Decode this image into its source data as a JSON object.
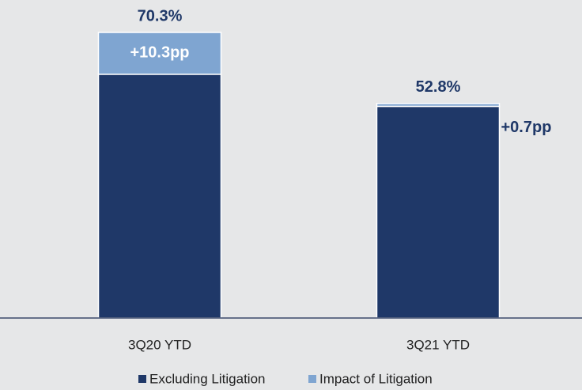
{
  "chart_data": {
    "type": "stacked_bar",
    "categories": [
      "3Q20 YTD",
      "3Q21 YTD"
    ],
    "series": [
      {
        "name": "Excluding Litigation",
        "color": "#1f3868",
        "values": [
          60.0,
          52.1
        ]
      },
      {
        "name": "Impact of Litigation",
        "color": "#7fa5d1",
        "values": [
          10.3,
          0.7
        ],
        "value_labels": [
          "+10.3pp",
          "+0.7pp"
        ]
      }
    ],
    "total_labels": [
      "70.3%",
      "52.8%"
    ]
  }
}
